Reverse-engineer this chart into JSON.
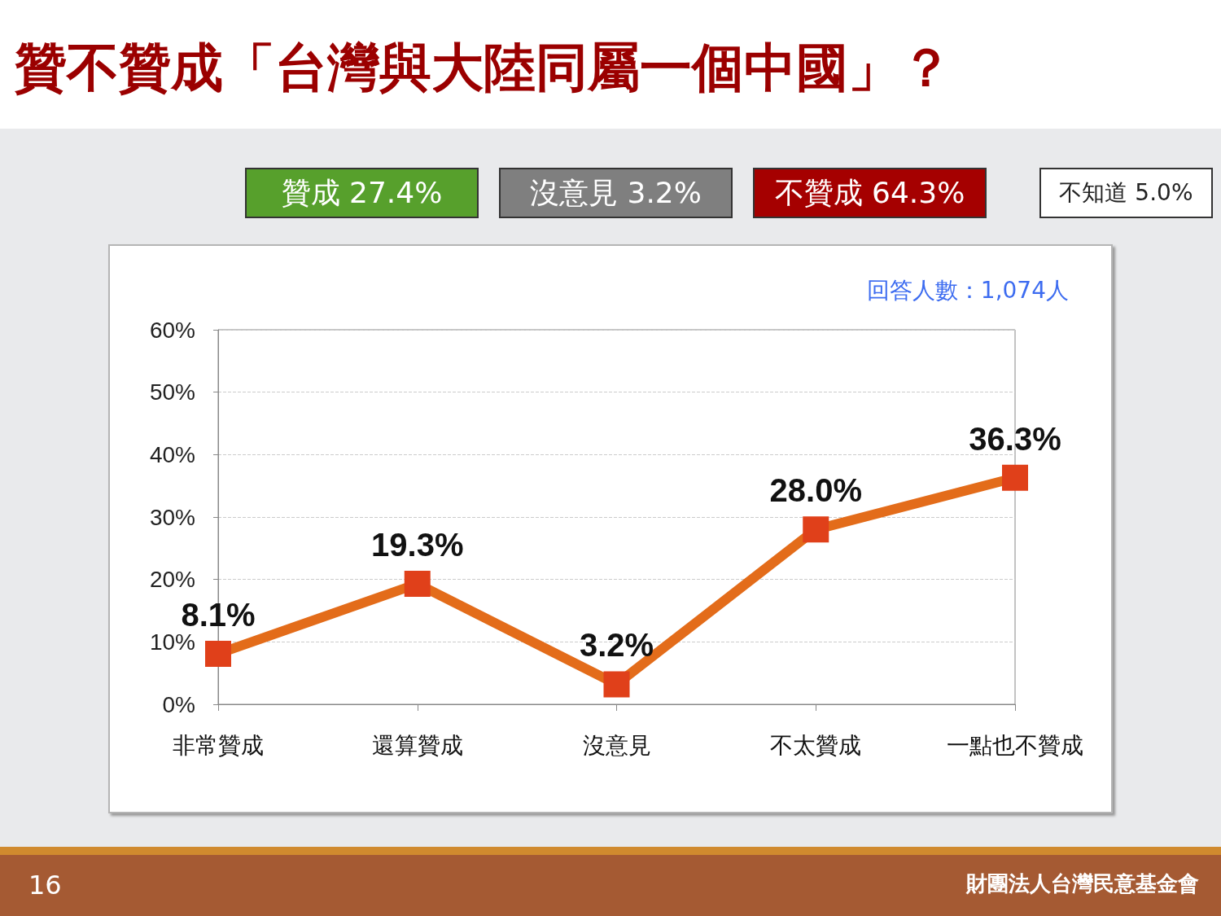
{
  "chart_data": {
    "type": "line",
    "title": "贊不贊成「台灣與大陸同屬一個中國」？",
    "categories": [
      "非常贊成",
      "還算贊成",
      "沒意見",
      "不太贊成",
      "一點也不贊成"
    ],
    "series": [
      {
        "color": "#e36c1a",
        "values": [
          8.1,
          19.3,
          3.2,
          28.0,
          36.3
        ],
        "value_labels": [
          "8.1%",
          "19.3%",
          "3.2%",
          "28.0%",
          "36.3%"
        ]
      }
    ],
    "ylim": [
      0,
      60
    ],
    "yticks": [
      {
        "value": 0,
        "label": "0%"
      },
      {
        "value": 10,
        "label": "10%"
      },
      {
        "value": 20,
        "label": "20%"
      },
      {
        "value": 30,
        "label": "30%"
      },
      {
        "value": 40,
        "label": "40%"
      },
      {
        "value": 50,
        "label": "50%"
      },
      {
        "value": 60,
        "label": "60%"
      }
    ],
    "grid": "y",
    "marker": "square",
    "line_style": "solid",
    "annotations": [
      "贊成 27.4%",
      "沒意見 3.2%",
      "不贊成 64.3%",
      "不知道 5.0%",
      "回答人數：1,074人",
      "16",
      "財團法人台灣民意基金會"
    ]
  }
}
